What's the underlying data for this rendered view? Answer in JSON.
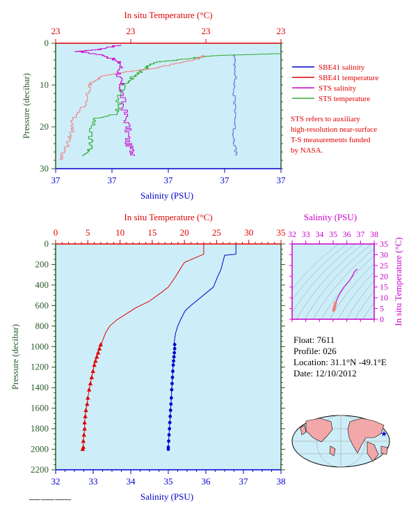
{
  "colors": {
    "plot_bg": "#cdeef8",
    "temperature": "#e00000",
    "salinity": "#0000cc",
    "sts_salinity": "#cc00cc",
    "sts_temperature": "#33aa33",
    "sbe_temp_faded": "#f08080",
    "sbe_sal_faded": "#5a6fd6",
    "pressure_axis": "#2a5a2a",
    "black": "#000000"
  },
  "top_panel": {
    "top_axis_label": "In situ Temperature (°C)",
    "top_ticks": [
      "23",
      "23",
      "23",
      "23"
    ],
    "bottom_axis_label": "Salinity (PSU)",
    "bottom_ticks": [
      "37",
      "37",
      "37",
      "37",
      "37"
    ],
    "y_axis_label": "Pressure (decibar)",
    "y_ticks": [
      "0",
      "10",
      "20",
      "30"
    ]
  },
  "legend": {
    "items": [
      {
        "label": "SBE41 salinity",
        "color": "#0000cc"
      },
      {
        "label": "SBE41 temperature",
        "color": "#e00000"
      },
      {
        "label": "STS salinity",
        "color": "#cc00cc"
      },
      {
        "label": "STS temperature",
        "color": "#33aa33"
      }
    ],
    "note": [
      "STS refers to auxiliary",
      "high-resolution near-surface",
      "T-S measurements funded",
      "by NASA."
    ]
  },
  "main_panel": {
    "top_axis_label": "In situ Temperature (°C)",
    "top_ticks": [
      "0",
      "5",
      "10",
      "15",
      "20",
      "25",
      "30",
      "35"
    ],
    "bottom_axis_label": "Salinity (PSU)",
    "bottom_ticks": [
      "32",
      "33",
      "34",
      "35",
      "36",
      "37",
      "38"
    ],
    "y_axis_label": "Pressure (decibar)",
    "y_ticks": [
      "0",
      "200",
      "400",
      "600",
      "800",
      "1000",
      "1200",
      "1400",
      "1600",
      "1800",
      "2000",
      "2200"
    ]
  },
  "ts_panel": {
    "top_axis_label": "Salinity (PSU)",
    "top_ticks": [
      "32",
      "33",
      "34",
      "35",
      "36",
      "37",
      "38"
    ],
    "right_axis_label": "In situ Temperature (°C)",
    "right_ticks": [
      "0",
      "5",
      "10",
      "15",
      "20",
      "25",
      "30",
      "35"
    ]
  },
  "info": {
    "float": "Float: 7611",
    "profile": "Profile: 026",
    "location": "Location: 31.1°N -49.1°E",
    "date": "Date: 12/10/2012"
  },
  "chart_data": [
    {
      "type": "line",
      "name": "top-panel-near-surface",
      "y_label": "Pressure (decibar)",
      "ylim": [
        0,
        30
      ],
      "series": [
        {
          "name": "STS temperature",
          "axis": "temperature_frac",
          "points": [
            [
              1.0,
              2.5
            ],
            [
              0.7,
              3
            ],
            [
              0.55,
              4
            ],
            [
              0.45,
              4.5
            ],
            [
              0.4,
              6
            ],
            [
              0.35,
              8
            ],
            [
              0.3,
              10
            ],
            [
              0.28,
              14
            ],
            [
              0.27,
              17
            ],
            [
              0.18,
              18
            ],
            [
              0.15,
              22
            ],
            [
              0.16,
              25
            ],
            [
              0.12,
              27
            ]
          ]
        },
        {
          "name": "SBE41 temperature",
          "axis": "temperature_frac",
          "points": [
            [
              0.66,
              3
            ],
            [
              0.62,
              4
            ],
            [
              0.45,
              6
            ],
            [
              0.3,
              7
            ],
            [
              0.2,
              8
            ],
            [
              0.15,
              10
            ],
            [
              0.13,
              15
            ],
            [
              0.08,
              18
            ],
            [
              0.07,
              22
            ],
            [
              0.05,
              25
            ],
            [
              0.02,
              28
            ]
          ]
        },
        {
          "name": "STS salinity",
          "axis": "salinity_frac",
          "points": [
            [
              0.28,
              0.5
            ],
            [
              0.2,
              1.5
            ],
            [
              0.1,
              2
            ],
            [
              0.22,
              3
            ],
            [
              0.29,
              5
            ],
            [
              0.28,
              8
            ],
            [
              0.29,
              10
            ],
            [
              0.3,
              15
            ],
            [
              0.32,
              20
            ],
            [
              0.32,
              24
            ],
            [
              0.35,
              27
            ]
          ]
        },
        {
          "name": "SBE41 salinity",
          "axis": "salinity_frac",
          "points": [
            [
              0.79,
              3
            ],
            [
              0.8,
              7
            ],
            [
              0.79,
              12
            ],
            [
              0.8,
              17
            ],
            [
              0.79,
              22
            ],
            [
              0.8,
              27
            ]
          ]
        }
      ]
    },
    {
      "type": "line",
      "name": "main-profile",
      "xlabel_top": "In situ Temperature (°C)",
      "xlabel_bottom": "Salinity (PSU)",
      "ylabel": "Pressure (decibar)",
      "temperature_xlim": [
        0,
        35
      ],
      "salinity_xlim": [
        32,
        38
      ],
      "ylim": [
        0,
        2200
      ],
      "series": [
        {
          "name": "Temperature",
          "axis": "temperature",
          "points": [
            [
              23.0,
              0
            ],
            [
              23.0,
              100
            ],
            [
              22.6,
              110
            ],
            [
              20.0,
              180
            ],
            [
              19.2,
              260
            ],
            [
              18.5,
              330
            ],
            [
              17.5,
              420
            ],
            [
              16.5,
              470
            ],
            [
              14.5,
              560
            ],
            [
              12.5,
              620
            ],
            [
              10.5,
              700
            ],
            [
              9.5,
              740
            ],
            [
              8.4,
              800
            ],
            [
              7.8,
              860
            ],
            [
              7.3,
              940
            ],
            [
              7.0,
              1000
            ]
          ],
          "markers": [
            [
              7.0,
              980
            ],
            [
              6.8,
              1020
            ],
            [
              6.6,
              1060
            ],
            [
              6.4,
              1100
            ],
            [
              6.2,
              1140
            ],
            [
              6.0,
              1180
            ],
            [
              5.8,
              1240
            ],
            [
              5.6,
              1300
            ],
            [
              5.4,
              1360
            ],
            [
              5.2,
              1420
            ],
            [
              5.0,
              1500
            ],
            [
              4.9,
              1560
            ],
            [
              4.7,
              1620
            ],
            [
              4.6,
              1680
            ],
            [
              4.5,
              1740
            ],
            [
              4.5,
              1800
            ],
            [
              4.4,
              1860
            ],
            [
              4.3,
              1920
            ],
            [
              4.3,
              1980
            ],
            [
              4.2,
              2000
            ]
          ]
        },
        {
          "name": "Salinity",
          "axis": "salinity",
          "points": [
            [
              36.8,
              0
            ],
            [
              36.8,
              100
            ],
            [
              36.5,
              110
            ],
            [
              36.45,
              180
            ],
            [
              36.4,
              250
            ],
            [
              36.3,
              330
            ],
            [
              36.2,
              420
            ],
            [
              36.0,
              480
            ],
            [
              35.8,
              540
            ],
            [
              35.6,
              600
            ],
            [
              35.45,
              650
            ],
            [
              35.35,
              720
            ],
            [
              35.25,
              800
            ],
            [
              35.2,
              860
            ],
            [
              35.17,
              920
            ],
            [
              35.15,
              980
            ]
          ],
          "markers": [
            [
              35.17,
              980
            ],
            [
              35.17,
              1020
            ],
            [
              35.16,
              1060
            ],
            [
              35.15,
              1100
            ],
            [
              35.14,
              1140
            ],
            [
              35.13,
              1180
            ],
            [
              35.12,
              1240
            ],
            [
              35.11,
              1300
            ],
            [
              35.1,
              1360
            ],
            [
              35.09,
              1420
            ],
            [
              35.08,
              1500
            ],
            [
              35.07,
              1560
            ],
            [
              35.06,
              1620
            ],
            [
              35.05,
              1680
            ],
            [
              35.04,
              1740
            ],
            [
              35.03,
              1800
            ],
            [
              35.02,
              1860
            ],
            [
              35.01,
              1920
            ],
            [
              35.0,
              1980
            ],
            [
              35.0,
              2000
            ]
          ]
        }
      ]
    },
    {
      "type": "line",
      "name": "ts-diagram",
      "xlabel": "Salinity (PSU)",
      "ylabel": "In situ Temperature (°C)",
      "xlim": [
        32,
        38
      ],
      "ylim": [
        0,
        35
      ],
      "series": [
        {
          "name": "T-S",
          "points": [
            [
              35.05,
              4.5
            ],
            [
              35.1,
              6
            ],
            [
              35.2,
              8
            ],
            [
              35.4,
              11
            ],
            [
              35.6,
              13
            ],
            [
              35.8,
              15
            ],
            [
              36.2,
              18
            ],
            [
              36.4,
              20
            ],
            [
              36.55,
              22
            ],
            [
              36.7,
              23
            ],
            [
              36.8,
              23.2
            ]
          ]
        }
      ]
    }
  ]
}
